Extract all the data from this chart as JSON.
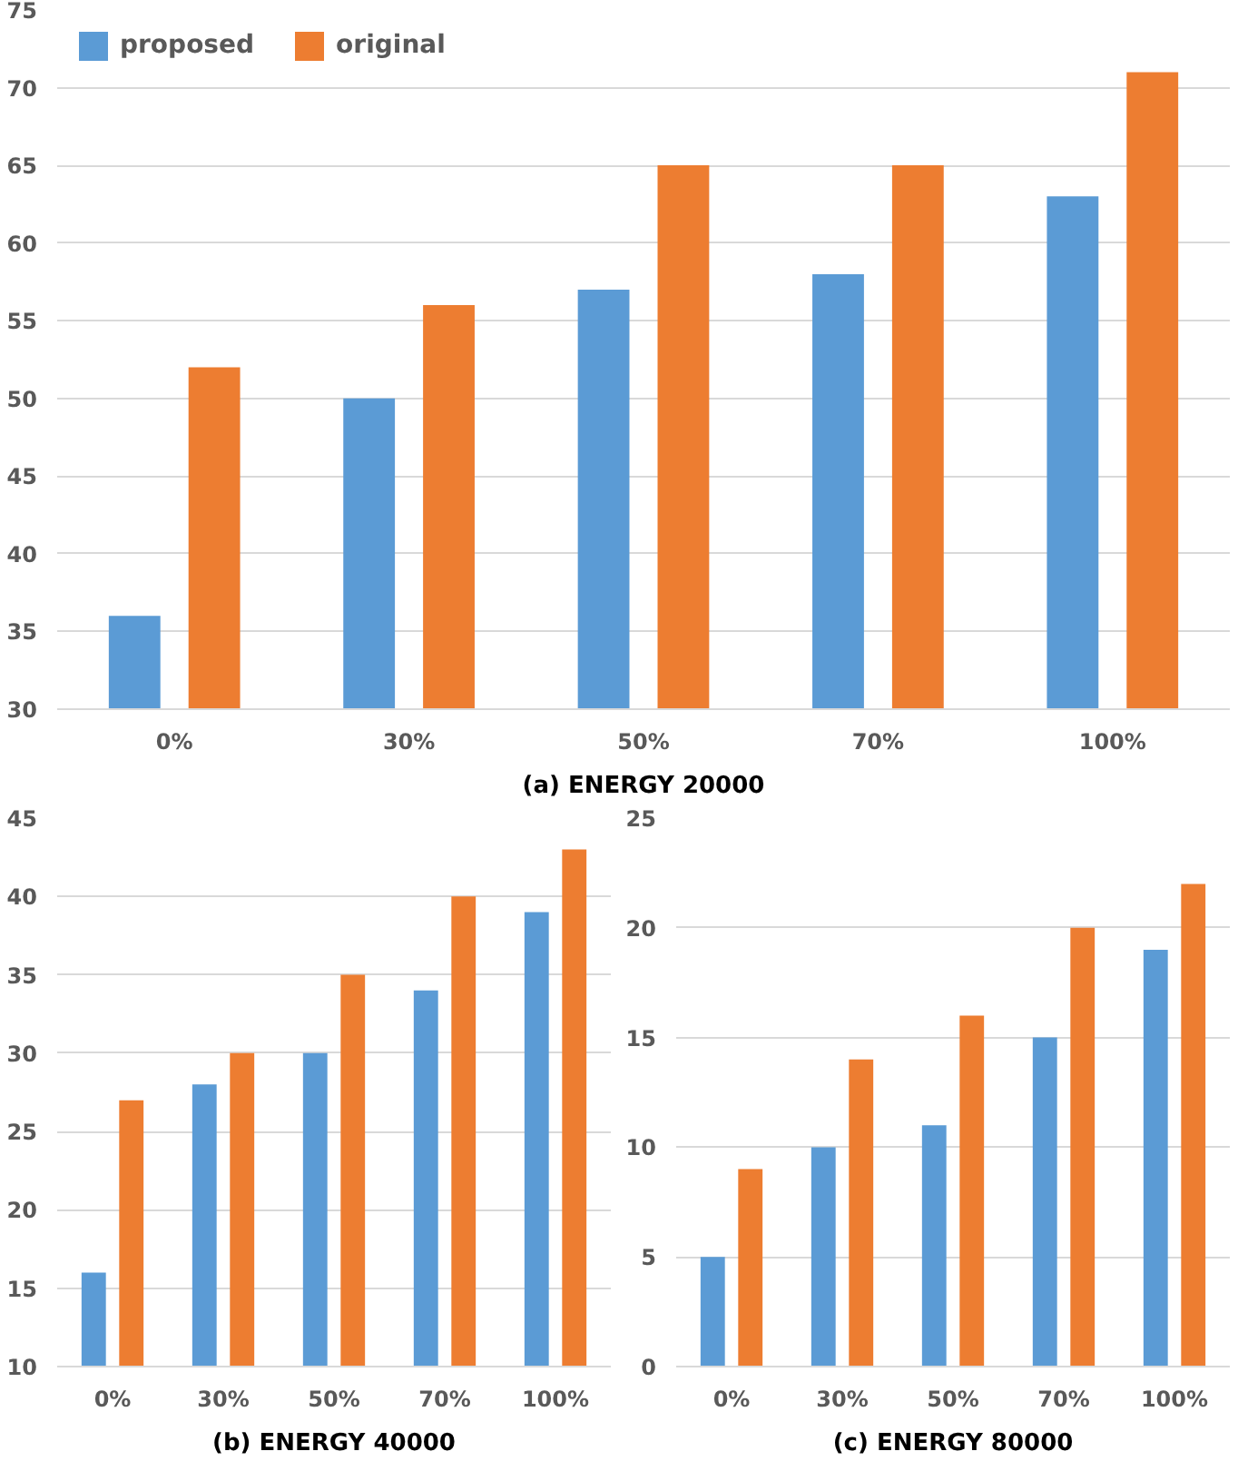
{
  "chart_data": [
    {
      "type": "bar",
      "title": "(a) ENERGY 20000",
      "categories": [
        "0%",
        "30%",
        "50%",
        "70%",
        "100%"
      ],
      "series": [
        {
          "name": "proposed",
          "color": "#5b9bd5",
          "values": [
            36,
            50,
            57,
            58,
            63
          ]
        },
        {
          "name": "original",
          "color": "#ed7d31",
          "values": [
            52,
            56,
            65,
            65,
            71
          ]
        }
      ],
      "ylim": [
        30,
        75
      ],
      "yticks": [
        30,
        35,
        40,
        45,
        50,
        55,
        60,
        65,
        70,
        75
      ],
      "grid": "y",
      "legend": "top left"
    },
    {
      "type": "bar",
      "title": "(b) ENERGY 40000",
      "categories": [
        "0%",
        "30%",
        "50%",
        "70%",
        "100%"
      ],
      "series": [
        {
          "color": "#5b9bd5",
          "values": [
            16,
            28,
            30,
            34,
            39
          ]
        },
        {
          "color": "#ed7d31",
          "values": [
            27,
            30,
            35,
            40,
            43
          ]
        }
      ],
      "ylim": [
        10,
        45
      ],
      "yticks": [
        10,
        15,
        20,
        25,
        30,
        35,
        40,
        45
      ],
      "grid": "y"
    },
    {
      "type": "bar",
      "title": "(c) ENERGY 80000",
      "categories": [
        "0%",
        "30%",
        "50%",
        "70%",
        "100%"
      ],
      "series": [
        {
          "color": "#5b9bd5",
          "values": [
            5,
            10,
            11,
            15,
            19
          ]
        },
        {
          "color": "#ed7d31",
          "values": [
            9,
            14,
            16,
            20,
            22
          ]
        }
      ],
      "ylim": [
        0,
        25
      ],
      "yticks": [
        0,
        5,
        10,
        15,
        20,
        25
      ],
      "grid": "y"
    }
  ]
}
